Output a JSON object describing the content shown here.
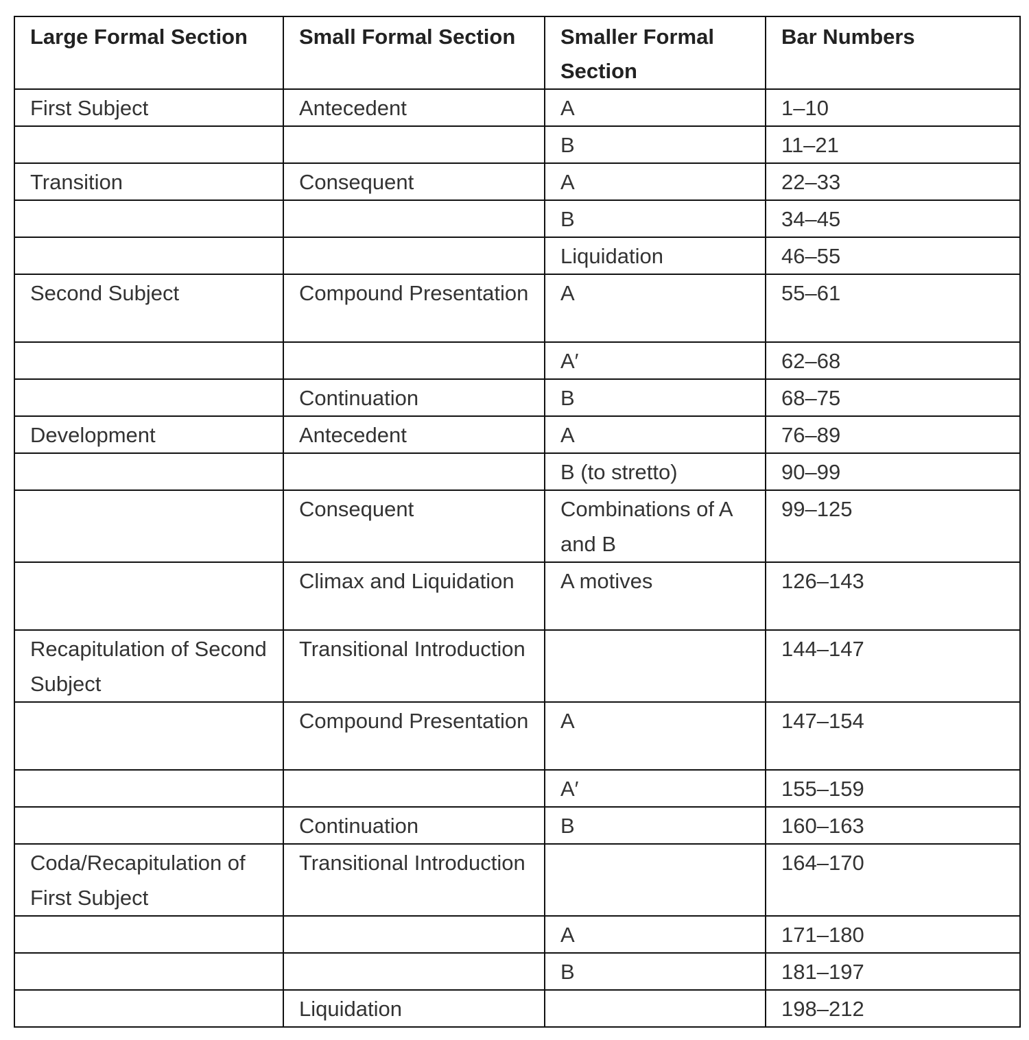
{
  "headers": [
    "Large Formal Section",
    "Small Formal Section",
    "Smaller Formal Section",
    "Bar Numbers"
  ],
  "rows": [
    [
      "First Subject",
      "Antecedent",
      "A",
      "1–10"
    ],
    [
      "",
      "",
      "B",
      "11–21"
    ],
    [
      "Transition",
      "Consequent",
      "A",
      "22–33"
    ],
    [
      "",
      "",
      "B",
      "34–45"
    ],
    [
      "",
      "",
      "Liquidation",
      "46–55"
    ],
    [
      "Second Subject",
      "Compound Presentation",
      "A",
      "55–61"
    ],
    [
      "",
      "",
      "A′",
      "62–68"
    ],
    [
      "",
      "Continuation",
      "B",
      "68–75"
    ],
    [
      "Development",
      "Antecedent",
      "A",
      "76–89"
    ],
    [
      "",
      "",
      "B (to stretto)",
      "90–99"
    ],
    [
      "",
      "Consequent",
      "Combinations of A and B",
      "99–125"
    ],
    [
      "",
      "Climax and Liquidation",
      "A motives",
      "126–143"
    ],
    [
      "Recapitulation of Second Subject",
      "Transitional Introduction",
      "",
      "144–147"
    ],
    [
      "",
      "Compound Presentation",
      "A",
      "147–154"
    ],
    [
      "",
      "",
      "A′",
      "155–159"
    ],
    [
      "",
      "Continuation",
      "B",
      "160–163"
    ],
    [
      "Coda/Recapitulation of First Subject",
      "Transitional Introduction",
      "",
      "164–170"
    ],
    [
      "",
      "",
      "A",
      "171–180"
    ],
    [
      "",
      "",
      "B",
      "181–197"
    ],
    [
      "",
      "Liquidation",
      "",
      "198–212"
    ]
  ]
}
